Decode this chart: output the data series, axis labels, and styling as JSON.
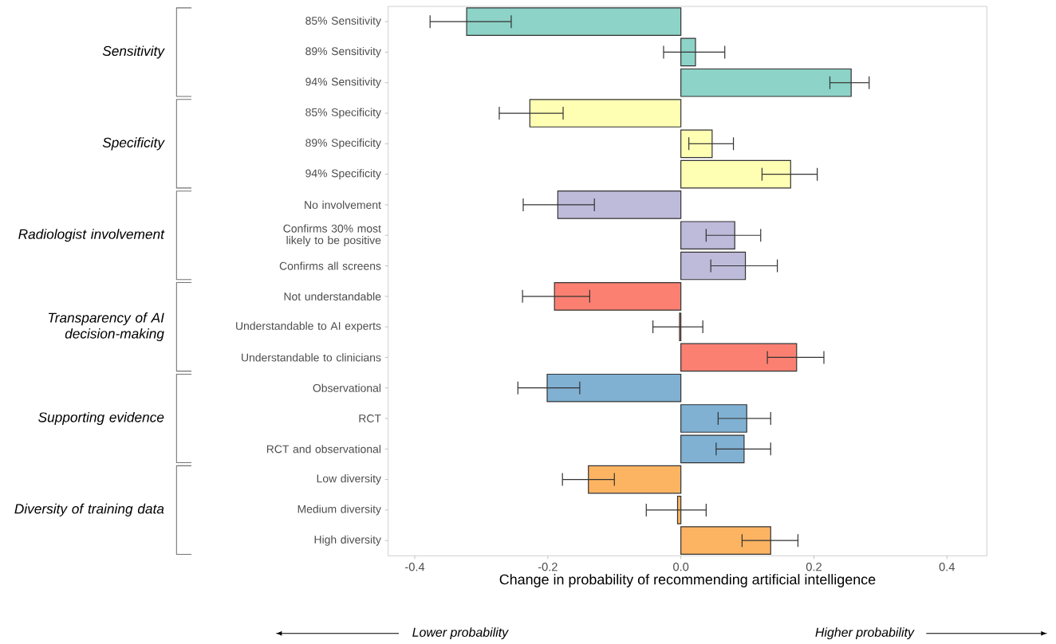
{
  "chart_data": {
    "type": "bar",
    "orientation": "horizontal",
    "categories": [
      "85% Sensitivity",
      "89% Sensitivity",
      "94% Sensitivity",
      "85% Specificity",
      "89% Specificity",
      "94% Specificity",
      "No involvement",
      "Confirms 30% most likely to be positive",
      "Confirms all screens",
      "Not understandable",
      "Understandable to AI experts",
      "Understandable to clinicians",
      "Observational",
      "RCT",
      "RCT and observational",
      "Low diversity",
      "Medium diversity",
      "High diversity"
    ],
    "values": [
      -0.322,
      0.022,
      0.256,
      -0.227,
      0.047,
      0.165,
      -0.185,
      0.081,
      0.097,
      -0.19,
      -0.002,
      0.174,
      -0.201,
      0.099,
      0.095,
      -0.139,
      -0.005,
      0.135
    ],
    "errors": [
      [
        -0.377,
        -0.255
      ],
      [
        -0.026,
        0.066
      ],
      [
        0.224,
        0.283
      ],
      [
        -0.273,
        -0.177
      ],
      [
        0.012,
        0.079
      ],
      [
        0.122,
        0.205
      ],
      [
        -0.237,
        -0.13
      ],
      [
        0.038,
        0.12
      ],
      [
        0.045,
        0.145
      ],
      [
        -0.238,
        -0.137
      ],
      [
        -0.042,
        0.033
      ],
      [
        0.13,
        0.215
      ],
      [
        -0.245,
        -0.152
      ],
      [
        0.056,
        0.135
      ],
      [
        0.053,
        0.135
      ],
      [
        -0.178,
        -0.1
      ],
      [
        -0.052,
        0.038
      ],
      [
        0.092,
        0.176
      ]
    ],
    "colors": [
      "#8dd3c7",
      "#8dd3c7",
      "#8dd3c7",
      "#ffffb3",
      "#ffffb3",
      "#ffffb3",
      "#bebada",
      "#bebada",
      "#bebada",
      "#fb8072",
      "#fb8072",
      "#fb8072",
      "#80b1d3",
      "#80b1d3",
      "#80b1d3",
      "#fdb462",
      "#fdb462",
      "#fdb462"
    ],
    "xlabel": "Change in probability of recommending artificial intelligence",
    "xlim": [
      -0.44,
      0.46
    ],
    "xticks": [
      {
        "value": -0.4,
        "label": "-0.4"
      },
      {
        "value": -0.2,
        "label": "-0.2"
      },
      {
        "value": 0,
        "label": "0.0"
      },
      {
        "value": 0.2,
        "label": "0.2"
      },
      {
        "value": 0.4,
        "label": "0.4"
      }
    ],
    "annotations": [
      "Sensitivity",
      "Specificity",
      "Radiologist involvement",
      "Transparency of AI decision-making",
      "Supporting evidence",
      "Diversity of training data",
      "Lower probability",
      "Higher probability"
    ]
  }
}
